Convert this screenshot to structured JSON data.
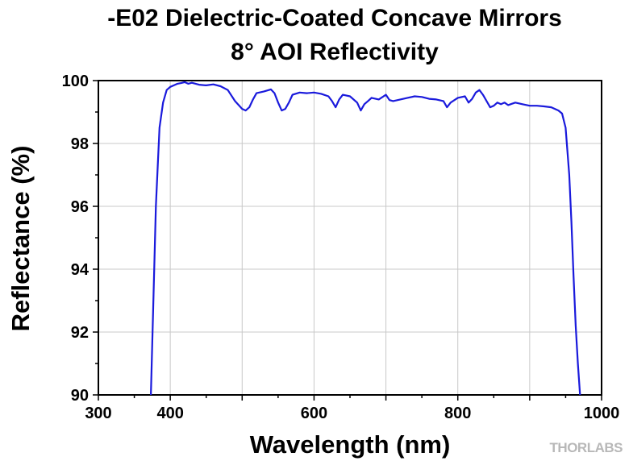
{
  "chart_data": {
    "type": "line",
    "title": "-E02 Dielectric-Coated Concave Mirrors",
    "subtitle": "8° AOI Reflectivity",
    "xlabel": "Wavelength (nm)",
    "ylabel": "Reflectance (%)",
    "xlim": [
      300,
      1000
    ],
    "ylim": [
      90,
      100
    ],
    "xticks": [
      300,
      400,
      600,
      800,
      1000
    ],
    "yticks": [
      90,
      92,
      94,
      96,
      98,
      100
    ],
    "grid": true,
    "line_color": "#1a1adc",
    "series": [
      {
        "x": [
          373,
          376,
          380,
          385,
          390,
          395,
          400,
          405,
          410,
          415,
          420,
          425,
          430,
          440,
          450,
          460,
          470,
          480,
          490,
          500,
          505,
          510,
          515,
          520,
          530,
          540,
          545,
          550,
          555,
          560,
          565,
          570,
          580,
          590,
          600,
          610,
          620,
          625,
          630,
          635,
          640,
          650,
          660,
          665,
          670,
          675,
          680,
          690,
          700,
          705,
          710,
          720,
          730,
          740,
          750,
          760,
          770,
          780,
          785,
          790,
          800,
          810,
          815,
          820,
          825,
          830,
          835,
          840,
          845,
          850,
          855,
          860,
          865,
          870,
          880,
          890,
          900,
          910,
          920,
          930,
          940,
          945,
          950,
          955,
          958,
          961,
          964,
          967,
          970
        ],
        "y": [
          90.0,
          92.5,
          96.0,
          98.5,
          99.3,
          99.7,
          99.8,
          99.85,
          99.9,
          99.92,
          99.95,
          99.9,
          99.93,
          99.87,
          99.85,
          99.88,
          99.82,
          99.7,
          99.35,
          99.1,
          99.05,
          99.15,
          99.4,
          99.6,
          99.65,
          99.72,
          99.6,
          99.3,
          99.05,
          99.1,
          99.3,
          99.55,
          99.62,
          99.6,
          99.62,
          99.58,
          99.5,
          99.35,
          99.15,
          99.4,
          99.55,
          99.5,
          99.3,
          99.05,
          99.25,
          99.35,
          99.45,
          99.4,
          99.55,
          99.38,
          99.35,
          99.4,
          99.45,
          99.5,
          99.48,
          99.42,
          99.4,
          99.35,
          99.15,
          99.3,
          99.45,
          99.5,
          99.3,
          99.42,
          99.62,
          99.7,
          99.55,
          99.35,
          99.15,
          99.2,
          99.3,
          99.25,
          99.3,
          99.22,
          99.3,
          99.25,
          99.2,
          99.2,
          99.18,
          99.15,
          99.05,
          98.95,
          98.5,
          97.0,
          95.5,
          93.8,
          92.2,
          91.0,
          90.0
        ]
      }
    ]
  },
  "watermark": "THORLABS"
}
